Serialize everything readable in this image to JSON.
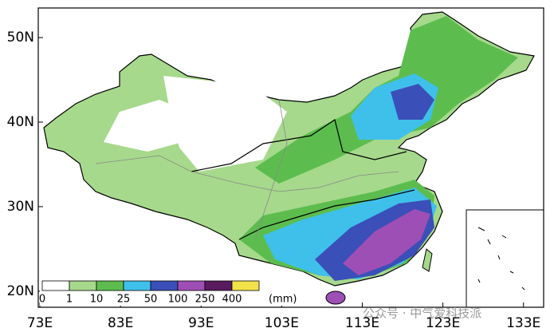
{
  "map": {
    "xlim": [
      72.8,
      135.5
    ],
    "ylim": [
      18.1,
      53.5
    ],
    "xticks": [
      {
        "value": 73,
        "label": "73E"
      },
      {
        "value": 83,
        "label": "83E"
      },
      {
        "value": 93,
        "label": "93E"
      },
      {
        "value": 103,
        "label": "103E"
      },
      {
        "value": 113,
        "label": "113E"
      },
      {
        "value": 123,
        "label": "123E"
      },
      {
        "value": 133,
        "label": "133E"
      }
    ],
    "yticks": [
      {
        "value": 20,
        "label": "20N"
      },
      {
        "value": 30,
        "label": "30N"
      },
      {
        "value": 40,
        "label": "40N"
      },
      {
        "value": 50,
        "label": "50N"
      }
    ],
    "legend": {
      "levels": [
        {
          "value": 0,
          "label": "0",
          "color": "#ffffff"
        },
        {
          "value": 1,
          "label": "1",
          "color": "#a6d98c"
        },
        {
          "value": 10,
          "label": "10",
          "color": "#5cbd4e"
        },
        {
          "value": 25,
          "label": "25",
          "color": "#3fc0ea"
        },
        {
          "value": 50,
          "label": "50",
          "color": "#3b4fb8"
        },
        {
          "value": 100,
          "label": "100",
          "color": "#9e4fb5"
        },
        {
          "value": 250,
          "label": "250",
          "color": "#5a1a5e"
        },
        {
          "value": 400,
          "label": "400",
          "color": "#f2e24a"
        }
      ],
      "unit": "(mm)"
    },
    "watermark": "公众号 · 中气爱科技派"
  }
}
